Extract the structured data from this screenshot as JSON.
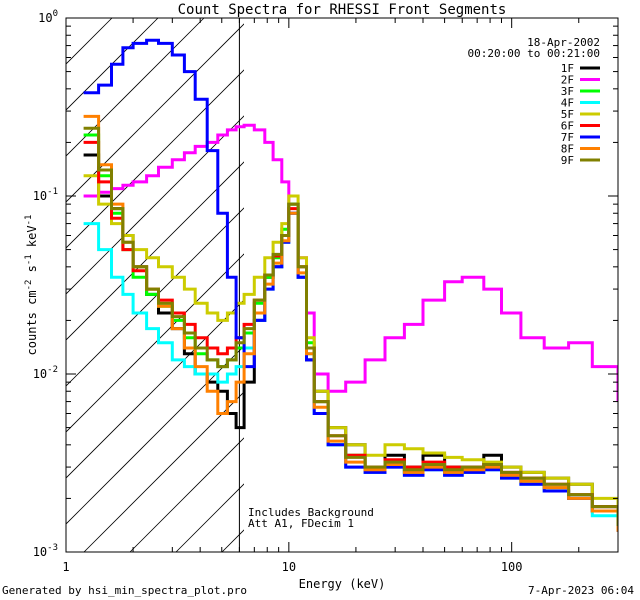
{
  "chart_data": {
    "type": "line",
    "title": "Count Spectra for RHESSI Front Segments",
    "xlabel": "Energy (keV)",
    "ylabel_main": "counts cm",
    "ylabel_sup1": "-2",
    "ylabel_mid": " s",
    "ylabel_sup2": "-1",
    "ylabel_end": " keV",
    "ylabel_sup3": "-1",
    "xscale": "log",
    "yscale": "log",
    "xlim": [
      1,
      300
    ],
    "ylim": [
      0.001,
      1
    ],
    "x_ticks": [
      {
        "value": 1,
        "label": "1"
      },
      {
        "value": 10,
        "label": "10"
      },
      {
        "value": 100,
        "label": "100"
      }
    ],
    "y_ticks": [
      {
        "value": 0.001,
        "base": "10",
        "exp": "-3"
      },
      {
        "value": 0.01,
        "base": "10",
        "exp": "-2"
      },
      {
        "value": 0.1,
        "base": "10",
        "exp": "-1"
      },
      {
        "value": 1,
        "base": "10",
        "exp": "0"
      }
    ],
    "date": "18-Apr-2002",
    "time_range": "00:20:00 to 00:21:00",
    "hatched_region_max_kev": 6,
    "annotations": [
      "Includes Background",
      "Att A1, FDecim 1"
    ],
    "series": [
      {
        "name": "1F",
        "color": "#000000",
        "x": [
          1.2,
          1.4,
          1.6,
          1.8,
          2.0,
          2.3,
          2.6,
          3.0,
          3.4,
          3.8,
          4.3,
          4.8,
          5.3,
          5.8,
          6.3,
          7.0,
          7.8,
          8.5,
          9.3,
          10,
          11,
          12,
          13,
          15,
          18,
          22,
          27,
          33,
          40,
          50,
          60,
          75,
          90,
          110,
          140,
          180,
          230,
          300
        ],
        "y": [
          0.17,
          0.1,
          0.085,
          0.06,
          0.04,
          0.028,
          0.022,
          0.018,
          0.013,
          0.01,
          0.009,
          0.008,
          0.006,
          0.005,
          0.009,
          0.02,
          0.035,
          0.04,
          0.06,
          0.09,
          0.035,
          0.012,
          0.008,
          0.005,
          0.004,
          0.003,
          0.0035,
          0.003,
          0.0035,
          0.003,
          0.003,
          0.0035,
          0.003,
          0.0028,
          0.0026,
          0.0024,
          0.0018,
          0.0015
        ]
      },
      {
        "name": "2F",
        "color": "#ff00ff",
        "x": [
          1.2,
          1.4,
          1.6,
          1.8,
          2.0,
          2.3,
          2.6,
          3.0,
          3.4,
          3.8,
          4.3,
          4.8,
          5.3,
          5.8,
          6.3,
          7.0,
          7.8,
          8.5,
          9.3,
          10,
          11,
          12,
          13,
          15,
          18,
          22,
          27,
          33,
          40,
          50,
          60,
          75,
          90,
          110,
          140,
          180,
          230,
          300
        ],
        "y": [
          0.1,
          0.105,
          0.11,
          0.115,
          0.12,
          0.13,
          0.145,
          0.16,
          0.175,
          0.19,
          0.2,
          0.22,
          0.235,
          0.245,
          0.25,
          0.235,
          0.2,
          0.16,
          0.12,
          0.08,
          0.045,
          0.022,
          0.01,
          0.008,
          0.009,
          0.012,
          0.016,
          0.019,
          0.026,
          0.033,
          0.035,
          0.03,
          0.022,
          0.016,
          0.014,
          0.015,
          0.011,
          0.007
        ]
      },
      {
        "name": "3F",
        "color": "#00ff00",
        "x": [
          1.2,
          1.4,
          1.6,
          1.8,
          2.0,
          2.3,
          2.6,
          3.0,
          3.4,
          3.8,
          4.3,
          4.8,
          5.3,
          5.8,
          6.3,
          7.0,
          7.8,
          8.5,
          9.3,
          10,
          11,
          12,
          13,
          15,
          18,
          22,
          27,
          33,
          40,
          50,
          60,
          75,
          90,
          110,
          140,
          180,
          230,
          300
        ],
        "y": [
          0.22,
          0.13,
          0.08,
          0.05,
          0.035,
          0.028,
          0.024,
          0.02,
          0.016,
          0.013,
          0.012,
          0.011,
          0.012,
          0.014,
          0.017,
          0.025,
          0.035,
          0.045,
          0.065,
          0.09,
          0.04,
          0.015,
          0.007,
          0.004,
          0.0035,
          0.003,
          0.0032,
          0.0028,
          0.003,
          0.0028,
          0.0029,
          0.003,
          0.0027,
          0.0025,
          0.0023,
          0.002,
          0.0017,
          0.0014
        ]
      },
      {
        "name": "4F",
        "color": "#00ffff",
        "x": [
          1.2,
          1.4,
          1.6,
          1.8,
          2.0,
          2.3,
          2.6,
          3.0,
          3.4,
          3.8,
          4.3,
          4.8,
          5.3,
          5.8,
          6.3,
          7.0,
          7.8,
          8.5,
          9.3,
          10,
          11,
          12,
          13,
          15,
          18,
          22,
          27,
          33,
          40,
          50,
          60,
          75,
          90,
          110,
          140,
          180,
          230,
          300
        ],
        "y": [
          0.07,
          0.05,
          0.035,
          0.028,
          0.022,
          0.018,
          0.015,
          0.012,
          0.011,
          0.01,
          0.01,
          0.009,
          0.01,
          0.011,
          0.014,
          0.02,
          0.03,
          0.04,
          0.055,
          0.08,
          0.035,
          0.013,
          0.006,
          0.004,
          0.003,
          0.0028,
          0.003,
          0.0027,
          0.0029,
          0.0027,
          0.0028,
          0.0029,
          0.0026,
          0.0024,
          0.0022,
          0.002,
          0.0016,
          0.0013
        ]
      },
      {
        "name": "5F",
        "color": "#cccc00",
        "x": [
          1.2,
          1.4,
          1.6,
          1.8,
          2.0,
          2.3,
          2.6,
          3.0,
          3.4,
          3.8,
          4.3,
          4.8,
          5.3,
          5.8,
          6.3,
          7.0,
          7.8,
          8.5,
          9.3,
          10,
          11,
          12,
          13,
          15,
          18,
          22,
          27,
          33,
          40,
          50,
          60,
          75,
          90,
          110,
          140,
          180,
          230,
          300
        ],
        "y": [
          0.13,
          0.09,
          0.07,
          0.06,
          0.05,
          0.045,
          0.04,
          0.035,
          0.03,
          0.025,
          0.022,
          0.02,
          0.022,
          0.025,
          0.028,
          0.035,
          0.045,
          0.055,
          0.07,
          0.1,
          0.045,
          0.016,
          0.008,
          0.005,
          0.004,
          0.0035,
          0.004,
          0.0038,
          0.0036,
          0.0034,
          0.0033,
          0.0032,
          0.003,
          0.0028,
          0.0026,
          0.0024,
          0.002,
          0.0016
        ]
      },
      {
        "name": "6F",
        "color": "#ff0000",
        "x": [
          1.2,
          1.4,
          1.6,
          1.8,
          2.0,
          2.3,
          2.6,
          3.0,
          3.4,
          3.8,
          4.3,
          4.8,
          5.3,
          5.8,
          6.3,
          7.0,
          7.8,
          8.5,
          9.3,
          10,
          11,
          12,
          13,
          15,
          18,
          22,
          27,
          33,
          40,
          50,
          60,
          75,
          90,
          110,
          140,
          180,
          230,
          300
        ],
        "y": [
          0.2,
          0.12,
          0.075,
          0.05,
          0.038,
          0.03,
          0.026,
          0.022,
          0.019,
          0.016,
          0.014,
          0.013,
          0.014,
          0.016,
          0.019,
          0.026,
          0.036,
          0.046,
          0.06,
          0.085,
          0.04,
          0.014,
          0.007,
          0.0045,
          0.0035,
          0.003,
          0.0033,
          0.003,
          0.0032,
          0.003,
          0.003,
          0.0031,
          0.0028,
          0.0026,
          0.0024,
          0.0021,
          0.0018,
          0.0014
        ]
      },
      {
        "name": "7F",
        "color": "#0000ff",
        "x": [
          1.2,
          1.4,
          1.6,
          1.8,
          2.0,
          2.3,
          2.6,
          3.0,
          3.4,
          3.8,
          4.3,
          4.8,
          5.3,
          5.8,
          6.3,
          7.0,
          7.8,
          8.5,
          9.3,
          10,
          11,
          12,
          13,
          15,
          18,
          22,
          27,
          33,
          40,
          50,
          60,
          75,
          90,
          110,
          140,
          180,
          230,
          300
        ],
        "y": [
          0.38,
          0.42,
          0.55,
          0.68,
          0.72,
          0.75,
          0.72,
          0.62,
          0.5,
          0.35,
          0.18,
          0.08,
          0.035,
          0.016,
          0.011,
          0.02,
          0.03,
          0.04,
          0.055,
          0.08,
          0.035,
          0.012,
          0.006,
          0.004,
          0.003,
          0.0028,
          0.003,
          0.0027,
          0.0029,
          0.0027,
          0.0028,
          0.0029,
          0.0026,
          0.0024,
          0.0022,
          0.002,
          0.0017,
          0.0013
        ]
      },
      {
        "name": "8F",
        "color": "#ff8000",
        "x": [
          1.2,
          1.4,
          1.6,
          1.8,
          2.0,
          2.3,
          2.6,
          3.0,
          3.4,
          3.8,
          4.3,
          4.8,
          5.3,
          5.8,
          6.3,
          7.0,
          7.8,
          8.5,
          9.3,
          10,
          11,
          12,
          13,
          15,
          18,
          22,
          27,
          33,
          40,
          50,
          60,
          75,
          90,
          110,
          140,
          180,
          230,
          300
        ],
        "y": [
          0.28,
          0.15,
          0.09,
          0.055,
          0.04,
          0.03,
          0.024,
          0.018,
          0.014,
          0.011,
          0.008,
          0.006,
          0.007,
          0.009,
          0.013,
          0.022,
          0.032,
          0.042,
          0.056,
          0.08,
          0.037,
          0.013,
          0.0065,
          0.0042,
          0.0032,
          0.0029,
          0.0031,
          0.0028,
          0.003,
          0.0028,
          0.0029,
          0.003,
          0.0027,
          0.0025,
          0.0023,
          0.002,
          0.0017,
          0.0013
        ]
      },
      {
        "name": "9F",
        "color": "#808000",
        "x": [
          1.2,
          1.4,
          1.6,
          1.8,
          2.0,
          2.3,
          2.6,
          3.0,
          3.4,
          3.8,
          4.3,
          4.8,
          5.3,
          5.8,
          6.3,
          7.0,
          7.8,
          8.5,
          9.3,
          10,
          11,
          12,
          13,
          15,
          18,
          22,
          27,
          33,
          40,
          50,
          60,
          75,
          90,
          110,
          140,
          180,
          230,
          300
        ],
        "y": [
          0.24,
          0.14,
          0.085,
          0.055,
          0.04,
          0.03,
          0.025,
          0.021,
          0.017,
          0.014,
          0.012,
          0.011,
          0.012,
          0.015,
          0.018,
          0.026,
          0.036,
          0.047,
          0.06,
          0.09,
          0.04,
          0.014,
          0.007,
          0.0045,
          0.0034,
          0.003,
          0.0032,
          0.0029,
          0.0031,
          0.0029,
          0.003,
          0.0031,
          0.0028,
          0.0026,
          0.0024,
          0.0021,
          0.0018,
          0.0014
        ]
      }
    ]
  },
  "footer": {
    "generated_by": "Generated by hsi_min_spectra_plot.pro",
    "timestamp": "7-Apr-2023 06:04"
  }
}
